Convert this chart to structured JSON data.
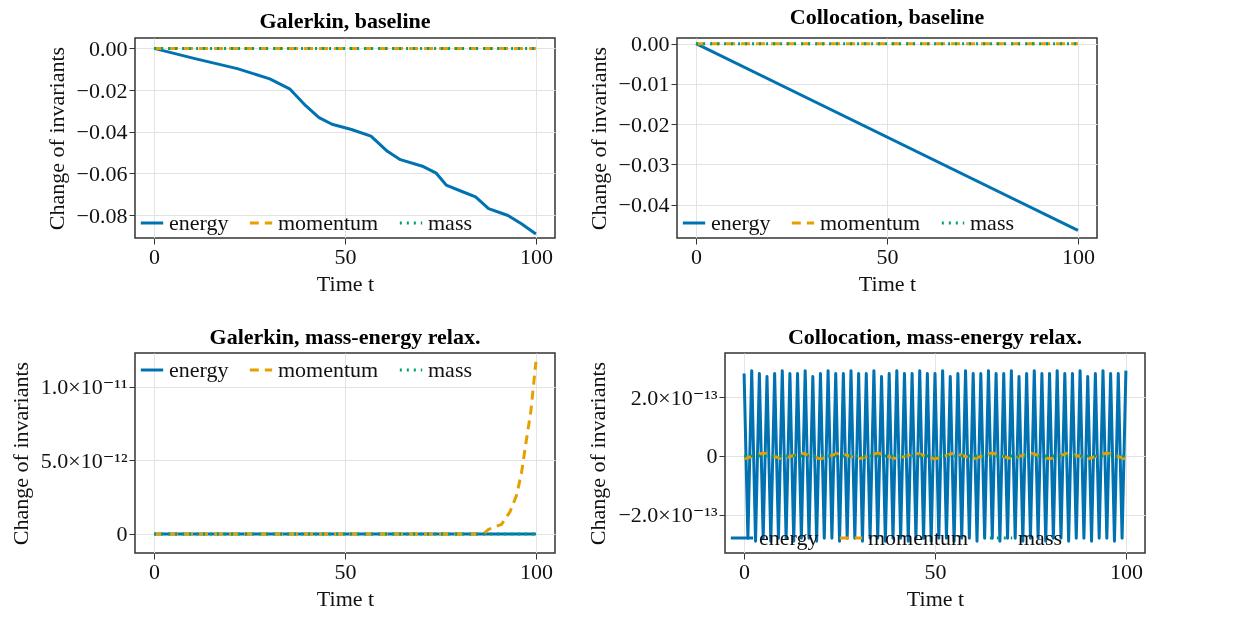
{
  "chart_data": [
    {
      "type": "line",
      "title": "Galerkin, baseline",
      "xlabel": "Time t",
      "ylabel": "Change of invariants",
      "xlim": [
        -5,
        105
      ],
      "xticks": [
        0,
        50,
        100
      ],
      "ylim": [
        -0.091,
        0.005
      ],
      "yticks": [
        {
          "value": 0,
          "label": "0.00"
        },
        {
          "value": -0.02,
          "label": "−0.02"
        },
        {
          "value": -0.04,
          "label": "−0.04"
        },
        {
          "value": -0.06,
          "label": "−0.06"
        },
        {
          "value": -0.08,
          "label": "−0.08"
        }
      ],
      "grid": true,
      "legend": "bottom left",
      "series": [
        {
          "name": "energy",
          "color": "#0072b2",
          "line_style": "solid",
          "x": [
            0,
            10.7,
            21.8,
            30.3,
            35.5,
            39.7,
            43.2,
            46.6,
            51.7,
            56.8,
            61.1,
            64.5,
            70.5,
            73.9,
            76.5,
            80.8,
            84.2,
            87.6,
            92.7,
            96.2,
            100
          ],
          "values": [
            0,
            -0.0049,
            -0.0097,
            -0.0146,
            -0.0194,
            -0.0275,
            -0.0332,
            -0.0364,
            -0.0389,
            -0.0421,
            -0.0494,
            -0.0534,
            -0.0567,
            -0.0599,
            -0.0656,
            -0.0688,
            -0.0713,
            -0.0769,
            -0.0802,
            -0.0842,
            -0.0891
          ]
        },
        {
          "name": "momentum",
          "color": "#e69f00",
          "line_style": "dashed",
          "x": [
            0,
            100
          ],
          "values": [
            0,
            0
          ]
        },
        {
          "name": "mass",
          "color": "#009e73",
          "line_style": "dotted",
          "x": [
            0,
            100
          ],
          "values": [
            0,
            0
          ]
        }
      ]
    },
    {
      "type": "line",
      "title": "Collocation, baseline",
      "xlabel": "Time t",
      "ylabel": "Change of invariants",
      "xlim": [
        -5,
        105
      ],
      "xticks": [
        0,
        50,
        100
      ],
      "ylim": [
        -0.0483,
        0.0014
      ],
      "yticks": [
        {
          "value": 0,
          "label": "0.00"
        },
        {
          "value": -0.01,
          "label": "−0.01"
        },
        {
          "value": -0.02,
          "label": "−0.02"
        },
        {
          "value": -0.03,
          "label": "−0.03"
        },
        {
          "value": -0.04,
          "label": "−0.04"
        }
      ],
      "grid": true,
      "legend": "bottom left",
      "series": [
        {
          "name": "energy",
          "color": "#0072b2",
          "line_style": "solid",
          "x": [
            0,
            100
          ],
          "values": [
            0,
            -0.0464
          ]
        },
        {
          "name": "momentum",
          "color": "#e69f00",
          "line_style": "dashed",
          "x": [
            0,
            100
          ],
          "values": [
            0,
            0
          ]
        },
        {
          "name": "mass",
          "color": "#009e73",
          "line_style": "dotted",
          "x": [
            0,
            100
          ],
          "values": [
            0,
            0
          ]
        }
      ]
    },
    {
      "type": "line",
      "title": "Galerkin, mass-energy relax.",
      "xlabel": "Time t",
      "ylabel": "Change of invariants",
      "xlim": [
        -5,
        105
      ],
      "xticks": [
        0,
        50,
        100
      ],
      "ylim": [
        -1.3e-12,
        1.23e-11
      ],
      "yticks": [
        {
          "value": 0,
          "label": "0"
        },
        {
          "value": 5e-12,
          "label": "5.0×10⁻¹²"
        },
        {
          "value": 1e-11,
          "label": "1.0×10⁻¹¹"
        }
      ],
      "grid": true,
      "legend": "top left",
      "series": [
        {
          "name": "energy",
          "color": "#0072b2",
          "line_style": "solid",
          "x": [
            0,
            100
          ],
          "values": [
            0,
            0
          ]
        },
        {
          "name": "momentum",
          "color": "#e69f00",
          "line_style": "dashed",
          "x": [
            0,
            86.3,
            87.6,
            91,
            93.2,
            94.9,
            96.2,
            97.4,
            98.7,
            100
          ],
          "values": [
            0,
            0,
            3e-13,
            6.5e-13,
            1.5e-12,
            2.6e-12,
            4.1e-12,
            6.2e-12,
            8.4e-12,
            1.17e-11
          ]
        },
        {
          "name": "mass",
          "color": "#009e73",
          "line_style": "dotted",
          "x": [
            0,
            100
          ],
          "values": [
            0,
            0
          ]
        }
      ]
    },
    {
      "type": "line",
      "title": "Collocation, mass-energy relax.",
      "xlabel": "Time t",
      "ylabel": "Change of invariants",
      "xlim": [
        -5,
        105
      ],
      "xticks": [
        0,
        50,
        100
      ],
      "ylim": [
        -3.3e-13,
        3.5e-13
      ],
      "yticks": [
        {
          "value": -2e-13,
          "label": "−2.0×10⁻¹³"
        },
        {
          "value": 0,
          "label": "0"
        },
        {
          "value": 2e-13,
          "label": "2.0×10⁻¹³"
        }
      ],
      "grid": true,
      "legend": "bottom left",
      "series": [
        {
          "name": "energy",
          "color": "#0072b2",
          "line_style": "solid",
          "x": [
            0,
            1,
            2,
            3,
            4,
            5,
            6,
            7,
            8,
            9,
            10,
            11,
            12,
            13,
            14,
            15,
            16,
            17,
            18,
            19,
            20,
            21,
            22,
            23,
            24,
            25,
            26,
            27,
            28,
            29,
            30,
            31,
            32,
            33,
            34,
            35,
            36,
            37,
            38,
            39,
            40,
            41,
            42,
            43,
            44,
            45,
            46,
            47,
            48,
            49,
            50,
            51,
            52,
            53,
            54,
            55,
            56,
            57,
            58,
            59,
            60,
            61,
            62,
            63,
            64,
            65,
            66,
            67,
            68,
            69,
            70,
            71,
            72,
            73,
            74,
            75,
            76,
            77,
            78,
            79,
            80,
            81,
            82,
            83,
            84,
            85,
            86,
            87,
            88,
            89,
            90,
            91,
            92,
            93,
            94,
            95,
            96,
            97,
            98,
            99,
            100
          ],
          "values": [
            2.8e-13,
            -2.8e-13,
            2.9e-13,
            -2.9e-13,
            2.8e-13,
            -2.8e-13,
            2.7e-13,
            -2.9e-13,
            2.8e-13,
            -2.8e-13,
            2.9e-13,
            -2.8e-13,
            2.8e-13,
            -2.9e-13,
            2.8e-13,
            -2.8e-13,
            2.9e-13,
            -2.8e-13,
            2.7e-13,
            -2.9e-13,
            2.8e-13,
            -2.8e-13,
            2.9e-13,
            -2.8e-13,
            2.8e-13,
            -2.9e-13,
            2.8e-13,
            -2.8e-13,
            2.9e-13,
            -2.8e-13,
            2.8e-13,
            -2.9e-13,
            2.8e-13,
            -2.8e-13,
            2.9e-13,
            -2.8e-13,
            2.7e-13,
            -2.9e-13,
            2.8e-13,
            -2.8e-13,
            2.9e-13,
            -2.8e-13,
            2.8e-13,
            -2.9e-13,
            2.8e-13,
            -2.8e-13,
            2.9e-13,
            -2.8e-13,
            2.8e-13,
            -2.9e-13,
            2.8e-13,
            -2.8e-13,
            2.9e-13,
            -2.8e-13,
            2.7e-13,
            -2.9e-13,
            2.8e-13,
            -2.8e-13,
            2.9e-13,
            -2.8e-13,
            2.8e-13,
            -2.9e-13,
            2.8e-13,
            -2.8e-13,
            2.9e-13,
            -2.8e-13,
            2.8e-13,
            -2.9e-13,
            2.8e-13,
            -2.8e-13,
            2.9e-13,
            -2.8e-13,
            2.7e-13,
            -2.9e-13,
            2.8e-13,
            -2.8e-13,
            2.9e-13,
            -2.8e-13,
            2.8e-13,
            -2.9e-13,
            2.8e-13,
            -2.8e-13,
            2.9e-13,
            -2.8e-13,
            2.8e-13,
            -2.9e-13,
            2.8e-13,
            -2.8e-13,
            2.9e-13,
            -2.8e-13,
            2.7e-13,
            -2.9e-13,
            2.8e-13,
            -2.8e-13,
            2.9e-13,
            -2.8e-13,
            2.8e-13,
            -2.9e-13,
            2.8e-13,
            -2.8e-13,
            2.9e-13
          ]
        },
        {
          "name": "momentum",
          "color": "#e69f00",
          "line_style": "dashed",
          "x": [
            0,
            5,
            10,
            15,
            20,
            25,
            30,
            35,
            40,
            45,
            50,
            55,
            60,
            65,
            70,
            75,
            80,
            85,
            90,
            95,
            100
          ],
          "values": [
            -1e-14,
            1e-14,
            -1e-14,
            1e-14,
            -1e-14,
            1e-14,
            -1e-14,
            1e-14,
            -1e-14,
            1e-14,
            -1e-14,
            1e-14,
            -1e-14,
            1e-14,
            -1e-14,
            1e-14,
            -1e-14,
            1e-14,
            -1e-14,
            1e-14,
            -1e-14
          ]
        },
        {
          "name": "mass",
          "color": "#009e73",
          "line_style": "dotted",
          "x": [
            0,
            100
          ],
          "values": [
            0,
            0
          ]
        }
      ]
    }
  ]
}
